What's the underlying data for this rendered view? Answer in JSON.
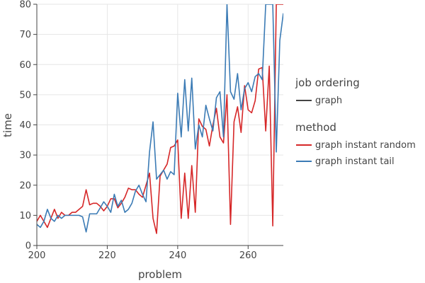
{
  "chart_data": {
    "type": "line",
    "xlabel": "problem",
    "ylabel": "time",
    "xlim": [
      200,
      270
    ],
    "ylim": [
      0,
      80
    ],
    "x_ticks": [
      200,
      220,
      240,
      260
    ],
    "y_ticks": [
      0,
      10,
      20,
      30,
      40,
      50,
      60,
      70,
      80
    ],
    "grid": true,
    "legend": {
      "placement": "right",
      "groups": [
        {
          "title": "job ordering",
          "items": [
            {
              "label": "graph",
              "color": "#444444"
            }
          ]
        },
        {
          "title": "method",
          "items": [
            {
              "label": "graph instant random",
              "color": "#d62728"
            },
            {
              "label": "graph instant tail",
              "color": "#3b7bb5"
            }
          ]
        }
      ]
    },
    "series": [
      {
        "name": "graph instant random",
        "color": "#d62728",
        "x": [
          200,
          201,
          202,
          203,
          204,
          205,
          206,
          207,
          208,
          209,
          210,
          211,
          212,
          213,
          214,
          215,
          216,
          217,
          218,
          219,
          220,
          221,
          222,
          223,
          224,
          225,
          226,
          227,
          228,
          229,
          230,
          231,
          232,
          233,
          234,
          235,
          236,
          237,
          238,
          239,
          240,
          241,
          242,
          243,
          244,
          245,
          246,
          247,
          248,
          249,
          250,
          251,
          252,
          253,
          254,
          255,
          256,
          257,
          258,
          259,
          260,
          261,
          262,
          263,
          264,
          265,
          266,
          267,
          268,
          269,
          270
        ],
        "values": [
          8,
          10,
          8,
          6,
          9,
          12,
          9,
          11,
          10,
          10,
          11,
          11,
          12,
          13,
          18.5,
          13.5,
          14,
          14,
          13,
          11.5,
          13,
          15.5,
          15.5,
          12.5,
          14,
          16,
          19,
          18.5,
          18.5,
          17,
          16,
          20,
          24,
          9,
          4,
          23,
          25,
          27,
          32.5,
          33,
          35,
          9,
          24,
          9,
          26.5,
          11,
          42,
          39.5,
          38.5,
          33,
          40,
          45.5,
          36,
          34,
          50,
          7,
          41,
          46,
          37.5,
          53,
          45,
          44,
          48,
          58.5,
          59,
          38,
          59.5,
          6.5,
          80,
          80,
          80
        ]
      },
      {
        "name": "graph instant tail",
        "color": "#3b7bb5",
        "x": [
          200,
          201,
          202,
          203,
          204,
          205,
          206,
          207,
          208,
          209,
          210,
          211,
          212,
          213,
          214,
          215,
          216,
          217,
          218,
          219,
          220,
          221,
          222,
          223,
          224,
          225,
          226,
          227,
          228,
          229,
          230,
          231,
          232,
          233,
          234,
          235,
          236,
          237,
          238,
          239,
          240,
          241,
          242,
          243,
          244,
          245,
          246,
          247,
          248,
          249,
          250,
          251,
          252,
          253,
          254,
          255,
          256,
          257,
          258,
          259,
          260,
          261,
          262,
          263,
          264,
          265,
          266,
          267,
          268,
          269,
          270
        ],
        "values": [
          7,
          6,
          8,
          12,
          9,
          8,
          10,
          9,
          10,
          10,
          10,
          10,
          10,
          9.5,
          4.5,
          10.5,
          10.5,
          10.5,
          12.5,
          14.5,
          13,
          11,
          17,
          13,
          15,
          11,
          12,
          14,
          18,
          20,
          17,
          14.5,
          31,
          41,
          22,
          23.5,
          25,
          22,
          24.5,
          23.5,
          50.5,
          36,
          55,
          38,
          55.5,
          32,
          40,
          36,
          46.5,
          42,
          38,
          49,
          51,
          36,
          80,
          51,
          48.5,
          57,
          45,
          52,
          54,
          51,
          56,
          57,
          55,
          80,
          80,
          80,
          31,
          68,
          77
        ]
      }
    ]
  }
}
